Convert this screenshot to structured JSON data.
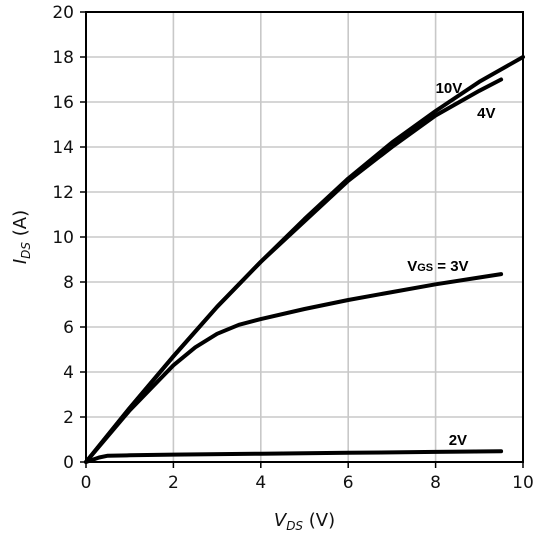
{
  "chart_data": {
    "type": "line",
    "title": "",
    "xlabel": {
      "main": "V",
      "sub": "DS",
      "unit": " (V)"
    },
    "ylabel": {
      "main": "I",
      "sub": "DS",
      "unit": " (A)"
    },
    "xlim": [
      0,
      10
    ],
    "ylim": [
      0,
      20
    ],
    "xticks": [
      0,
      2,
      4,
      6,
      8,
      10
    ],
    "yticks": [
      0,
      2,
      4,
      6,
      8,
      10,
      12,
      14,
      16,
      18,
      20
    ],
    "grid": true,
    "legend": "none",
    "line_color": "#000000",
    "grid_color": "#c8c8c8",
    "series": [
      {
        "label": "10V",
        "x": [
          0,
          1,
          2,
          3,
          4,
          5,
          6,
          7,
          8,
          9,
          10
        ],
        "y": [
          0,
          2.4,
          4.7,
          6.9,
          8.9,
          10.8,
          12.6,
          14.2,
          15.6,
          16.9,
          18.0
        ]
      },
      {
        "label": "4V",
        "x": [
          0,
          1,
          2,
          3,
          4,
          5,
          6,
          7,
          8,
          9,
          9.5
        ],
        "y": [
          0,
          2.4,
          4.7,
          6.9,
          8.9,
          10.7,
          12.5,
          14.0,
          15.4,
          16.5,
          17.0
        ]
      },
      {
        "label": {
          "main": "V",
          "sub": "GS",
          "rest": " = 3V"
        },
        "x": [
          0,
          1,
          2,
          2.5,
          3,
          3.5,
          4,
          5,
          6,
          7,
          8,
          9,
          9.5
        ],
        "y": [
          0,
          2.3,
          4.3,
          5.1,
          5.7,
          6.1,
          6.35,
          6.8,
          7.2,
          7.55,
          7.9,
          8.2,
          8.35
        ]
      },
      {
        "label": "2V",
        "x": [
          0,
          0.3,
          0.5,
          1,
          2,
          4,
          6,
          8,
          9.5
        ],
        "y": [
          0,
          0.2,
          0.28,
          0.3,
          0.33,
          0.37,
          0.41,
          0.45,
          0.48
        ]
      }
    ]
  }
}
